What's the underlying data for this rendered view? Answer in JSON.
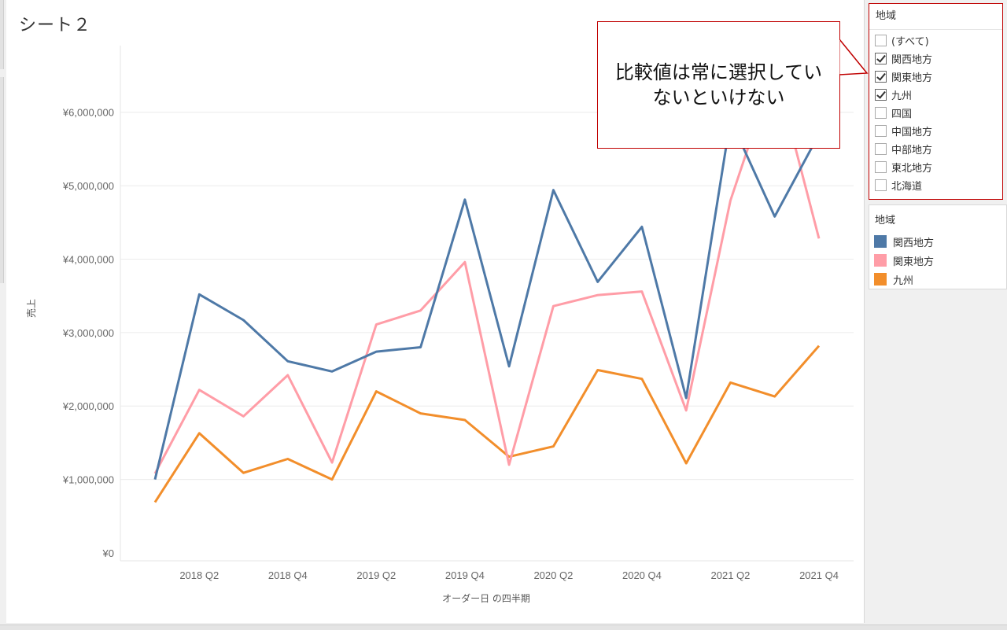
{
  "sheet": {
    "title": "シート２"
  },
  "chart_data": {
    "type": "line",
    "title": "シート２",
    "xlabel": "オーダー日 の四半期",
    "ylabel": "売上",
    "ylim": [
      0,
      6800000
    ],
    "yticks": [
      0,
      1000000,
      2000000,
      3000000,
      4000000,
      5000000,
      6000000
    ],
    "ytick_labels": [
      "¥0",
      "¥1,000,000",
      "¥2,000,000",
      "¥3,000,000",
      "¥4,000,000",
      "¥5,000,000",
      "¥6,000,000"
    ],
    "x": [
      "2018 Q1",
      "2018 Q2",
      "2018 Q3",
      "2018 Q4",
      "2019 Q1",
      "2019 Q2",
      "2019 Q3",
      "2019 Q4",
      "2020 Q1",
      "2020 Q2",
      "2020 Q3",
      "2020 Q4",
      "2021 Q1",
      "2021 Q2",
      "2021 Q3",
      "2021 Q4"
    ],
    "xtick_labels": [
      "2018 Q2",
      "2018 Q4",
      "2019 Q2",
      "2019 Q4",
      "2020 Q2",
      "2020 Q4",
      "2021 Q2",
      "2021 Q4"
    ],
    "xtick_positions": [
      1,
      3,
      5,
      7,
      9,
      11,
      13,
      15
    ],
    "grid": true,
    "series": [
      {
        "name": "関西地方",
        "color": "#4e79a7",
        "values": [
          1000000,
          3520000,
          3170000,
          2610000,
          2470000,
          2740000,
          2800000,
          4810000,
          2540000,
          4940000,
          3690000,
          4440000,
          2110000,
          5900000,
          4580000,
          5700000
        ]
      },
      {
        "name": "関東地方",
        "color": "#ff9da7",
        "values": [
          1080000,
          2220000,
          1860000,
          2420000,
          1230000,
          3110000,
          3300000,
          3960000,
          1200000,
          3360000,
          3510000,
          3560000,
          1940000,
          4800000,
          6600000,
          4280000
        ]
      },
      {
        "name": "九州",
        "color": "#f28e2b",
        "values": [
          690000,
          1630000,
          1090000,
          1280000,
          1000000,
          2200000,
          1900000,
          1810000,
          1310000,
          1450000,
          2490000,
          2370000,
          1220000,
          2320000,
          2130000,
          2820000
        ]
      }
    ]
  },
  "filter": {
    "title": "地域",
    "items": [
      {
        "label": "(すべて)",
        "checked": false
      },
      {
        "label": "関西地方",
        "checked": true
      },
      {
        "label": "関東地方",
        "checked": true
      },
      {
        "label": "九州",
        "checked": true
      },
      {
        "label": "四国",
        "checked": false
      },
      {
        "label": "中国地方",
        "checked": false
      },
      {
        "label": "中部地方",
        "checked": false
      },
      {
        "label": "東北地方",
        "checked": false
      },
      {
        "label": "北海道",
        "checked": false
      }
    ]
  },
  "legend": {
    "title": "地域",
    "items": [
      {
        "label": "関西地方",
        "color": "#4e79a7"
      },
      {
        "label": "関東地方",
        "color": "#ff9da7"
      },
      {
        "label": "九州",
        "color": "#f28e2b"
      }
    ]
  },
  "callout": {
    "text": "比較値は常に選択していないといけない"
  }
}
